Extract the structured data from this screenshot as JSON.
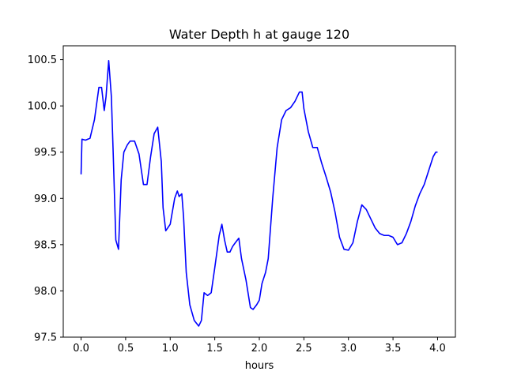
{
  "chart_data": {
    "type": "line",
    "title": "Water Depth h at gauge 120",
    "xlabel": "hours",
    "ylabel": "",
    "xlim": [
      -0.2,
      4.2
    ],
    "ylim": [
      97.5,
      100.65
    ],
    "xticks": [
      0.0,
      0.5,
      1.0,
      1.5,
      2.0,
      2.5,
      3.0,
      3.5,
      4.0
    ],
    "xtick_labels": [
      "0.0",
      "0.5",
      "1.0",
      "1.5",
      "2.0",
      "2.5",
      "3.0",
      "3.5",
      "4.0"
    ],
    "yticks": [
      97.5,
      98.0,
      98.5,
      99.0,
      99.5,
      100.0,
      100.5
    ],
    "ytick_labels": [
      "97.5",
      "98.0",
      "98.5",
      "99.0",
      "99.5",
      "100.0",
      "100.5"
    ],
    "grid": false,
    "series": [
      {
        "color": "#0000ff",
        "x": [
          0.0,
          0.01,
          0.05,
          0.1,
          0.15,
          0.2,
          0.23,
          0.26,
          0.28,
          0.31,
          0.34,
          0.36,
          0.39,
          0.42,
          0.45,
          0.48,
          0.52,
          0.55,
          0.6,
          0.65,
          0.7,
          0.74,
          0.78,
          0.82,
          0.86,
          0.9,
          0.92,
          0.95,
          1.0,
          1.05,
          1.08,
          1.1,
          1.13,
          1.15,
          1.18,
          1.22,
          1.27,
          1.32,
          1.35,
          1.38,
          1.42,
          1.46,
          1.5,
          1.55,
          1.58,
          1.61,
          1.64,
          1.67,
          1.7,
          1.73,
          1.77,
          1.8,
          1.85,
          1.9,
          1.93,
          1.97,
          2.0,
          2.03,
          2.07,
          2.1,
          2.15,
          2.2,
          2.25,
          2.3,
          2.35,
          2.4,
          2.45,
          2.48,
          2.5,
          2.55,
          2.6,
          2.65,
          2.7,
          2.75,
          2.8,
          2.85,
          2.9,
          2.95,
          3.0,
          3.05,
          3.1,
          3.15,
          3.2,
          3.25,
          3.3,
          3.35,
          3.4,
          3.45,
          3.5,
          3.55,
          3.6,
          3.65,
          3.7,
          3.75,
          3.8,
          3.85,
          3.9,
          3.95,
          3.98,
          4.0
        ],
        "y": [
          99.26,
          99.64,
          99.63,
          99.65,
          99.85,
          100.2,
          100.2,
          99.95,
          100.1,
          100.49,
          100.1,
          99.5,
          98.55,
          98.45,
          99.2,
          99.5,
          99.58,
          99.62,
          99.62,
          99.48,
          99.15,
          99.15,
          99.45,
          99.7,
          99.77,
          99.4,
          98.9,
          98.65,
          98.72,
          99.0,
          99.08,
          99.02,
          99.05,
          98.8,
          98.2,
          97.85,
          97.68,
          97.62,
          97.68,
          97.98,
          97.95,
          97.98,
          98.25,
          98.6,
          98.72,
          98.55,
          98.42,
          98.42,
          98.48,
          98.52,
          98.57,
          98.35,
          98.12,
          97.82,
          97.8,
          97.85,
          97.9,
          98.08,
          98.2,
          98.35,
          99.0,
          99.55,
          99.85,
          99.95,
          99.98,
          100.05,
          100.15,
          100.15,
          99.97,
          99.72,
          99.55,
          99.55,
          99.38,
          99.23,
          99.07,
          98.85,
          98.58,
          98.45,
          98.44,
          98.52,
          98.75,
          98.93,
          98.88,
          98.78,
          98.68,
          98.62,
          98.6,
          98.6,
          98.58,
          98.5,
          98.52,
          98.62,
          98.75,
          98.92,
          99.05,
          99.15,
          99.3,
          99.45,
          99.5,
          99.5
        ]
      }
    ]
  }
}
